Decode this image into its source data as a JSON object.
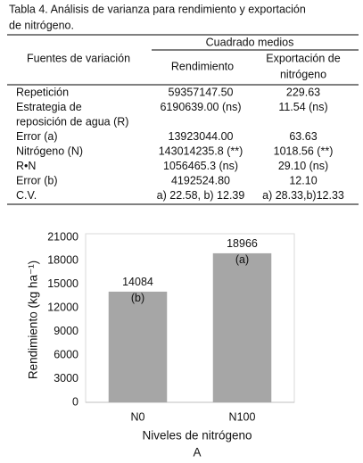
{
  "caption": [
    "Tabla 4. Análisis de varianza para rendimiento y exportación",
    "de nitrógeno."
  ],
  "table": {
    "header": {
      "fuentes": "Fuentes de variación",
      "group": "Cuadrado medios",
      "col1": "Rendimiento",
      "col2": [
        "Exportación de",
        "nitrógeno"
      ]
    },
    "rows": [
      [
        "Repetición",
        "59357147.50",
        "229.63"
      ],
      [
        [
          "Estrategia de",
          "reposición de agua (R)"
        ],
        "6190639.00 (ns)",
        "11.54 (ns)"
      ],
      [
        "Error (a)",
        "13923044.00",
        "63.63"
      ],
      [
        "Nitrógeno (N)",
        "143014235.8 (**)",
        "1018.56 (**)"
      ],
      [
        "R•N",
        "1056465.3 (ns)",
        "29.10 (ns)"
      ],
      [
        "Error (b)",
        "4192524.80",
        "12.10"
      ],
      [
        "C.V.",
        "a) 22.58, b) 12.39",
        "a) 28.33,b)12.33"
      ]
    ]
  },
  "chart_data": {
    "type": "bar",
    "categories": [
      "N0",
      "N100"
    ],
    "values": [
      14084,
      18966
    ],
    "letters": [
      "(b)",
      "(a)"
    ],
    "color": "#a6a6a6",
    "ylim": [
      0,
      21000
    ],
    "yticks": [
      0,
      3000,
      6000,
      9000,
      12000,
      15000,
      18000,
      21000
    ],
    "ylabel": "Rendimiento (kg ha⁻¹)",
    "xlabel": "Niveles de nitrógeno",
    "panel": "A"
  }
}
